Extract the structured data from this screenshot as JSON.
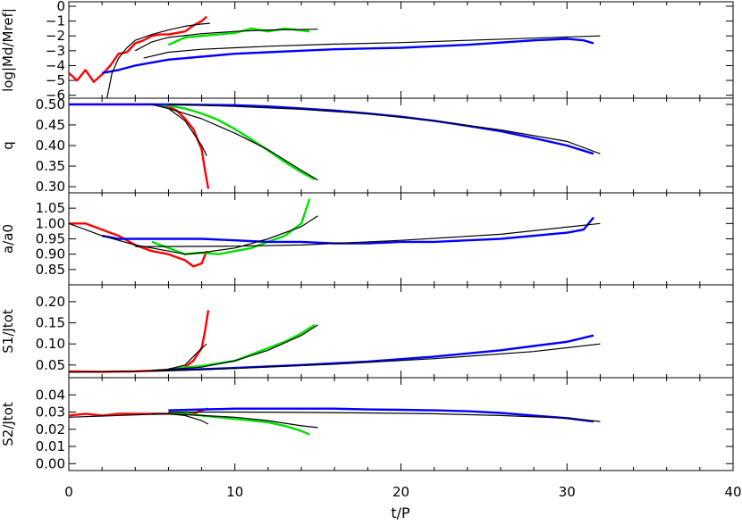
{
  "chart_data": {
    "type": "line",
    "xlabel": "t/P",
    "xlim": [
      0,
      40
    ],
    "xticks": [
      "0",
      "10",
      "20",
      "30",
      "40"
    ],
    "colors": {
      "black": "#000000",
      "red": "#ff0000",
      "green": "#00e000",
      "blue": "#0000ff"
    },
    "panels": [
      {
        "ylabel": "log|Md/Mref|",
        "ylim": [
          -6.2,
          0.3
        ],
        "ytick_values": [
          0,
          -1,
          -2,
          -3,
          -4,
          -5,
          -6
        ],
        "yticks": [
          "0",
          "−1",
          "−2",
          "−3",
          "−4",
          "−5",
          "−6"
        ],
        "series": [
          {
            "color": "red",
            "x": [
              0,
              0.5,
              1,
              1.5,
              2,
              2.5,
              3,
              3.5,
              4,
              4.5,
              5,
              5.5,
              6,
              6.5,
              7,
              7.5,
              8,
              8.3
            ],
            "y": [
              -4.5,
              -5.0,
              -4.3,
              -5.1,
              -4.6,
              -4.0,
              -3.2,
              -3.1,
              -2.5,
              -2.3,
              -2.0,
              -1.9,
              -1.9,
              -1.8,
              -1.7,
              -1.3,
              -1.0,
              -0.7
            ]
          },
          {
            "color": "green",
            "x": [
              6,
              7,
              8,
              9,
              10,
              11,
              12,
              13,
              14.5
            ],
            "y": [
              -2.6,
              -2.1,
              -2.0,
              -1.9,
              -1.8,
              -1.5,
              -1.7,
              -1.5,
              -1.7
            ]
          },
          {
            "color": "blue",
            "x": [
              2,
              3,
              4,
              5,
              6,
              8,
              10,
              12,
              14,
              16,
              18,
              20,
              22,
              24,
              26,
              28,
              30,
              31,
              31.6
            ],
            "y": [
              -4.5,
              -4.3,
              -4.0,
              -3.8,
              -3.6,
              -3.4,
              -3.2,
              -3.1,
              -3.0,
              -2.9,
              -2.85,
              -2.8,
              -2.7,
              -2.6,
              -2.45,
              -2.3,
              -2.2,
              -2.3,
              -2.5
            ]
          },
          {
            "color": "black",
            "x": [
              2.3,
              2.6,
              3,
              3.5,
              4,
              5,
              6,
              7,
              8,
              8.5
            ],
            "y": [
              -6.2,
              -4.5,
              -3.5,
              -2.8,
              -2.3,
              -1.9,
              -1.6,
              -1.35,
              -1.2,
              -1.15
            ]
          },
          {
            "color": "black",
            "x": [
              4,
              5,
              6,
              8,
              10,
              12,
              15
            ],
            "y": [
              -3.0,
              -2.4,
              -2.1,
              -1.85,
              -1.7,
              -1.6,
              -1.55
            ]
          },
          {
            "color": "black",
            "x": [
              4.5,
              6,
              8,
              10,
              12,
              16,
              20,
              24,
              28,
              32
            ],
            "y": [
              -3.5,
              -3.1,
              -2.9,
              -2.8,
              -2.7,
              -2.55,
              -2.45,
              -2.3,
              -2.15,
              -2.0
            ]
          }
        ]
      },
      {
        "ylabel": "q",
        "ylim": [
          0.285,
          0.515
        ],
        "ytick_values": [
          0.5,
          0.45,
          0.4,
          0.35,
          0.3
        ],
        "yticks": [
          "0.50",
          "0.45",
          "0.40",
          "0.35",
          "0.30"
        ],
        "series": [
          {
            "color": "red",
            "x": [
              0,
              5,
              6,
              6.5,
              7,
              7.5,
              8,
              8.2,
              8.4
            ],
            "y": [
              0.5,
              0.5,
              0.495,
              0.485,
              0.465,
              0.44,
              0.39,
              0.34,
              0.295
            ]
          },
          {
            "color": "green",
            "x": [
              5,
              6,
              7,
              8,
              9,
              10,
              11,
              12,
              13,
              14,
              14.8
            ],
            "y": [
              0.5,
              0.497,
              0.49,
              0.478,
              0.462,
              0.44,
              0.415,
              0.388,
              0.36,
              0.335,
              0.318
            ]
          },
          {
            "color": "blue",
            "x": [
              0,
              6,
              8,
              10,
              12,
              14,
              16,
              18,
              20,
              22,
              24,
              26,
              28,
              30,
              31.6
            ],
            "y": [
              0.5,
              0.5,
              0.499,
              0.498,
              0.495,
              0.49,
              0.485,
              0.478,
              0.47,
              0.46,
              0.448,
              0.435,
              0.418,
              0.4,
              0.38
            ]
          },
          {
            "color": "black",
            "x": [
              5,
              6,
              7,
              8,
              8.3
            ],
            "y": [
              0.5,
              0.49,
              0.46,
              0.4,
              0.375
            ]
          },
          {
            "color": "black",
            "x": [
              5,
              6,
              8,
              10,
              12,
              14,
              15
            ],
            "y": [
              0.5,
              0.49,
              0.465,
              0.43,
              0.39,
              0.34,
              0.316
            ]
          },
          {
            "color": "black",
            "x": [
              6,
              10,
              14,
              18,
              22,
              26,
              30,
              32
            ],
            "y": [
              0.5,
              0.495,
              0.488,
              0.477,
              0.46,
              0.438,
              0.41,
              0.38
            ]
          }
        ]
      },
      {
        "ylabel": "a/a0",
        "ylim": [
          0.8,
          1.1
        ],
        "ytick_values": [
          1.05,
          1.0,
          0.95,
          0.9,
          0.85
        ],
        "yticks": [
          "1.05",
          "1.00",
          "0.95",
          "0.90",
          "0.85"
        ],
        "series": [
          {
            "color": "red",
            "x": [
              0,
              1,
              2,
              3,
              4,
              5,
              6,
              7,
              7.5,
              8,
              8.3
            ],
            "y": [
              1.0,
              1.0,
              0.98,
              0.96,
              0.93,
              0.91,
              0.9,
              0.88,
              0.86,
              0.87,
              0.91
            ]
          },
          {
            "color": "green",
            "x": [
              5,
              6,
              7,
              8,
              9,
              10,
              11,
              12,
              13,
              14,
              14.5
            ],
            "y": [
              0.94,
              0.92,
              0.9,
              0.905,
              0.9,
              0.91,
              0.92,
              0.94,
              0.96,
              1.0,
              1.08
            ]
          },
          {
            "color": "blue",
            "x": [
              2,
              3,
              4,
              6,
              8,
              10,
              12,
              14,
              16,
              18,
              20,
              22,
              24,
              26,
              28,
              30,
              31,
              31.6
            ],
            "y": [
              0.96,
              0.95,
              0.95,
              0.95,
              0.95,
              0.945,
              0.94,
              0.94,
              0.935,
              0.935,
              0.94,
              0.94,
              0.945,
              0.95,
              0.96,
              0.97,
              0.98,
              1.02
            ]
          },
          {
            "color": "black",
            "x": [
              0,
              2,
              4,
              6,
              7,
              8,
              10,
              12,
              14,
              15
            ],
            "y": [
              1.0,
              0.96,
              0.93,
              0.91,
              0.9,
              0.905,
              0.92,
              0.95,
              0.99,
              1.025
            ]
          },
          {
            "color": "black",
            "x": [
              4,
              6,
              10,
              14,
              20,
              26,
              32
            ],
            "y": [
              0.925,
              0.925,
              0.926,
              0.93,
              0.945,
              0.965,
              1.0
            ]
          }
        ]
      },
      {
        "ylabel": "S1/Jtot",
        "ylim": [
          0.02,
          0.24
        ],
        "ytick_values": [
          0.2,
          0.15,
          0.1,
          0.05
        ],
        "yticks": [
          "0.20",
          "0.15",
          "0.10",
          "0.05"
        ],
        "series": [
          {
            "color": "red",
            "x": [
              0,
              2,
              4,
              6,
              7,
              7.5,
              8,
              8.2,
              8.4
            ],
            "y": [
              0.035,
              0.034,
              0.035,
              0.038,
              0.045,
              0.06,
              0.09,
              0.13,
              0.18
            ]
          },
          {
            "color": "green",
            "x": [
              6,
              8,
              10,
              11,
              12,
              13,
              14,
              14.8
            ],
            "y": [
              0.04,
              0.048,
              0.06,
              0.075,
              0.09,
              0.105,
              0.125,
              0.145
            ]
          },
          {
            "color": "blue",
            "x": [
              6,
              8,
              10,
              14,
              18,
              22,
              26,
              28,
              30,
              31.6
            ],
            "y": [
              0.038,
              0.04,
              0.043,
              0.05,
              0.058,
              0.07,
              0.085,
              0.095,
              0.105,
              0.12
            ]
          },
          {
            "color": "black",
            "x": [
              5,
              6,
              7,
              8,
              8.3
            ],
            "y": [
              0.037,
              0.04,
              0.05,
              0.09,
              0.1
            ]
          },
          {
            "color": "black",
            "x": [
              5,
              8,
              10,
              12,
              14,
              15
            ],
            "y": [
              0.037,
              0.045,
              0.06,
              0.085,
              0.12,
              0.145
            ]
          },
          {
            "color": "black",
            "x": [
              0,
              6,
              10,
              16,
              22,
              28,
              32
            ],
            "y": [
              0.033,
              0.036,
              0.042,
              0.052,
              0.065,
              0.082,
              0.1
            ]
          }
        ]
      },
      {
        "ylabel": "S2/Jtot",
        "ylim": [
          -0.004,
          0.05
        ],
        "ytick_values": [
          0.04,
          0.03,
          0.02,
          0.01,
          0.0
        ],
        "yticks": [
          "0.04",
          "0.03",
          "0.02",
          "0.01",
          "0.00"
        ],
        "series": [
          {
            "color": "red",
            "x": [
              0,
              1,
              2,
              3,
              4,
              5,
              6,
              7,
              7.5,
              8,
              8.4
            ],
            "y": [
              0.028,
              0.029,
              0.028,
              0.029,
              0.029,
              0.029,
              0.029,
              0.029,
              0.029,
              0.031,
              0.032
            ]
          },
          {
            "color": "green",
            "x": [
              6,
              7,
              8,
              9,
              10,
              11,
              12,
              13,
              14,
              14.5
            ],
            "y": [
              0.029,
              0.029,
              0.028,
              0.027,
              0.026,
              0.025,
              0.024,
              0.022,
              0.019,
              0.017
            ]
          },
          {
            "color": "blue",
            "x": [
              6,
              8,
              10,
              12,
              14,
              16,
              18,
              20,
              22,
              24,
              26,
              28,
              30,
              31.6
            ],
            "y": [
              0.031,
              0.0315,
              0.032,
              0.032,
              0.032,
              0.032,
              0.0315,
              0.0313,
              0.031,
              0.0305,
              0.0295,
              0.028,
              0.0265,
              0.0245
            ]
          },
          {
            "color": "black",
            "x": [
              5,
              6,
              7,
              8,
              8.4
            ],
            "y": [
              0.029,
              0.029,
              0.028,
              0.025,
              0.023
            ]
          },
          {
            "color": "black",
            "x": [
              0,
              6,
              8,
              10,
              12,
              14,
              15
            ],
            "y": [
              0.027,
              0.029,
              0.028,
              0.027,
              0.025,
              0.022,
              0.021
            ]
          },
          {
            "color": "black",
            "x": [
              6,
              10,
              14,
              18,
              22,
              26,
              30,
              32
            ],
            "y": [
              0.03,
              0.03,
              0.0298,
              0.0295,
              0.029,
              0.028,
              0.0265,
              0.0245
            ]
          }
        ]
      }
    ]
  }
}
